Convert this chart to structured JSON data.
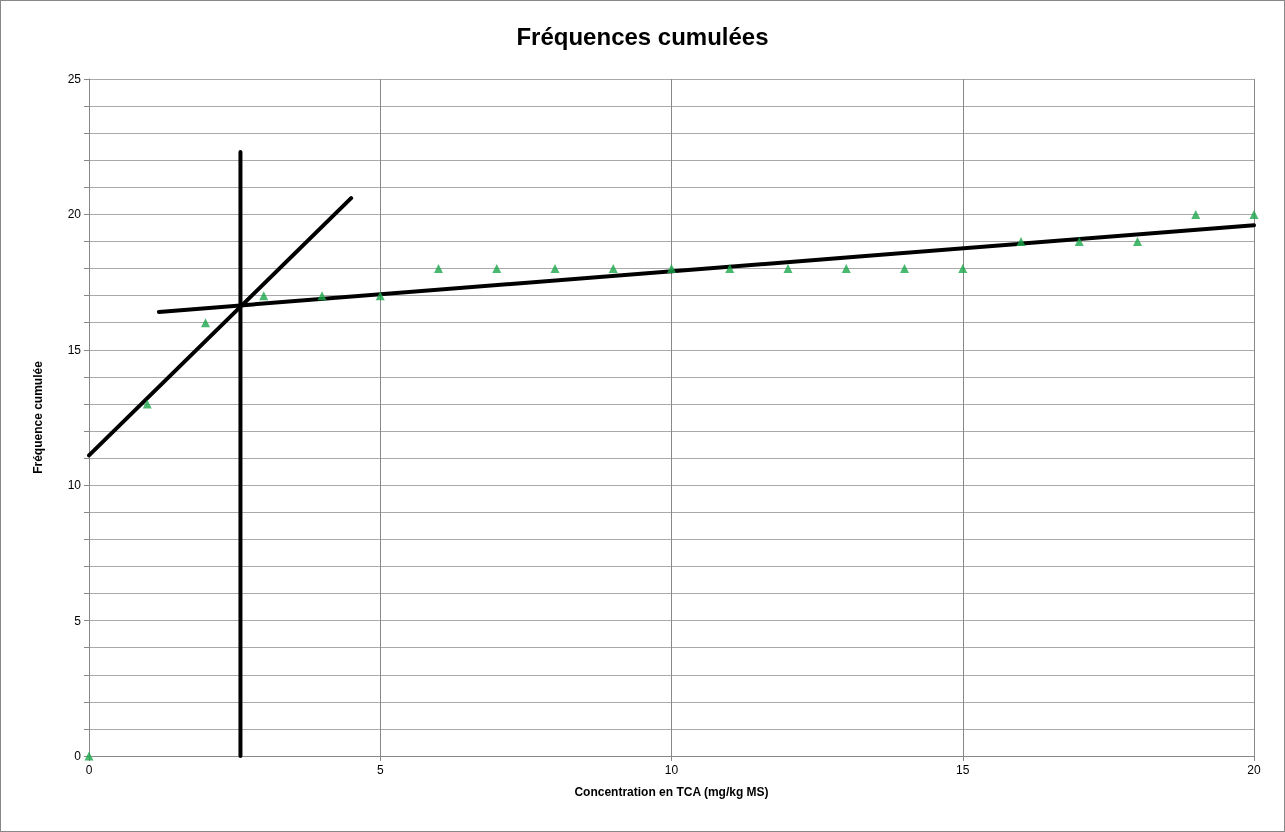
{
  "chart_data": {
    "type": "scatter",
    "title": "Fréquences cumulées",
    "xlabel": "Concentration en TCA (mg/kg MS)",
    "ylabel": "Fréquence cumulée",
    "x": [
      0,
      1,
      2,
      3,
      4,
      5,
      6,
      7,
      8,
      9,
      10,
      11,
      12,
      13,
      14,
      15,
      16,
      17,
      18,
      19,
      20
    ],
    "series": [
      {
        "color": "#1aa84a",
        "values": [
          0,
          13,
          16,
          17,
          17,
          17,
          18,
          18,
          18,
          18,
          18,
          18,
          18,
          18,
          18,
          18,
          19,
          19,
          19,
          20,
          20
        ]
      },
      {
        "type": "line",
        "color": "#000000",
        "marker": "none",
        "x": [
          2.6,
          2.6
        ],
        "values": [
          0,
          22.3
        ]
      },
      {
        "type": "line",
        "color": "#000000",
        "marker": "none",
        "x": [
          0,
          4.5
        ],
        "values": [
          11.1,
          20.6
        ]
      },
      {
        "type": "line",
        "color": "#000000",
        "marker": "none",
        "x": [
          1.2,
          20
        ],
        "values": [
          16.4,
          19.6
        ]
      }
    ],
    "marker": "triangle",
    "line_style": "solid",
    "grid": true,
    "xlim": [
      0,
      20
    ],
    "xticks": [
      0,
      5,
      10,
      15,
      20
    ],
    "ylim": [
      0,
      25
    ],
    "yticks": [
      0,
      {
        "value": 1,
        "label": null
      },
      {
        "value": 2,
        "label": null
      },
      {
        "value": 3,
        "label": null
      },
      {
        "value": 4,
        "label": null
      },
      5,
      {
        "value": 6,
        "label": null
      },
      {
        "value": 7,
        "label": null
      },
      {
        "value": 8,
        "label": null
      },
      {
        "value": 9,
        "label": null
      },
      10,
      {
        "value": 11,
        "label": null
      },
      {
        "value": 12,
        "label": null
      },
      {
        "value": 13,
        "label": null
      },
      {
        "value": 14,
        "label": null
      },
      15,
      {
        "value": 16,
        "label": null
      },
      {
        "value": 17,
        "label": null
      },
      {
        "value": 18,
        "label": null
      },
      {
        "value": 19,
        "label": null
      },
      20,
      {
        "value": 21,
        "label": null
      },
      {
        "value": 22,
        "label": null
      },
      {
        "value": 23,
        "label": null
      },
      {
        "value": 24,
        "label": null
      },
      25
    ]
  }
}
